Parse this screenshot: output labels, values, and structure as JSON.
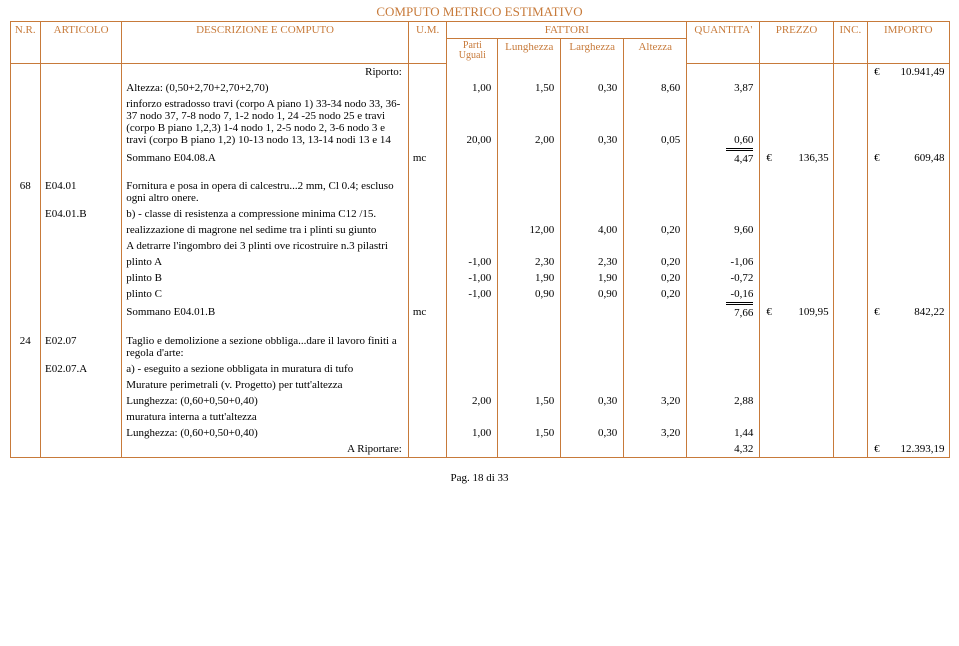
{
  "title": "COMPUTO METRICO ESTIMATIVO",
  "header": {
    "nr": "N.R.",
    "articolo": "ARTICOLO",
    "descrizione": "DESCRIZIONE E COMPUTO",
    "um": "U.M.",
    "fattori": "FATTORI",
    "parti_uguali": "Parti Uguali",
    "lunghezza": "Lunghezza",
    "larghezza": "Larghezza",
    "altezza": "Altezza",
    "quantita": "QUANTITA'",
    "prezzo": "PREZZO",
    "inc": "INC.",
    "importo": "IMPORTO"
  },
  "riporto_label": "Riporto:",
  "riporto_value": "10.941,49",
  "rows": [
    {
      "nr": "",
      "art": "",
      "desc": "Altezza: (0,50+2,70+2,70+2,70)",
      "um": "",
      "pu": "1,00",
      "lun": "1,50",
      "lar": "0,30",
      "alt": "8,60",
      "q": "3,87",
      "p": "",
      "inc": "",
      "imp": ""
    },
    {
      "nr": "",
      "art": "",
      "desc": "rinforzo estradosso travi (corpo A piano 1) 33-34 nodo 33, 36-37 nodo 37, 7-8 nodo 7, 1-2 nodo 1, 24 -25 nodo 25 e travi (corpo B piano 1,2,3) 1-4 nodo 1, 2-5 nodo 2, 3-6 nodo 3 e travi (corpo B piano 1,2) 10-13 nodo 13, 13-14 nodi 13 e 14",
      "um": "",
      "pu": "20,00",
      "lun": "2,00",
      "lar": "0,30",
      "alt": "0,05",
      "q": "0,60",
      "p": "",
      "inc": "",
      "imp": ""
    },
    {
      "type": "sommano",
      "desc": "Sommano E04.08.A",
      "um": "mc",
      "q": "4,47",
      "p": "136,35",
      "imp": "609,48"
    },
    {
      "nr": "68",
      "art": "E04.01",
      "desc": "Fornitura e posa in opera di calcestru...2 mm, Cl 0.4; escluso ogni altro onere."
    },
    {
      "nr": "",
      "art": "E04.01.B",
      "desc": "b) - classe di resistenza a compressione minima C12 /15."
    },
    {
      "nr": "",
      "art": "",
      "desc": "realizzazione di magrone nel sedime tra i plinti su giunto",
      "pu": "",
      "lun": "12,00",
      "lar": "4,00",
      "alt": "0,20",
      "q": "9,60"
    },
    {
      "nr": "",
      "art": "",
      "desc": "A detrarre l'ingombro dei 3 plinti ove ricostruire n.3 pilastri"
    },
    {
      "nr": "",
      "art": "",
      "desc": "plinto A",
      "pu": "-1,00",
      "lun": "2,30",
      "lar": "2,30",
      "alt": "0,20",
      "q": "-1,06"
    },
    {
      "nr": "",
      "art": "",
      "desc": "plinto B",
      "pu": "-1,00",
      "lun": "1,90",
      "lar": "1,90",
      "alt": "0,20",
      "q": "-0,72"
    },
    {
      "nr": "",
      "art": "",
      "desc": "plinto C",
      "pu": "-1,00",
      "lun": "0,90",
      "lar": "0,90",
      "alt": "0,20",
      "q": "-0,16"
    },
    {
      "type": "sommano",
      "desc": "Sommano E04.01.B",
      "um": "mc",
      "q": "7,66",
      "p": "109,95",
      "imp": "842,22"
    },
    {
      "nr": "24",
      "art": "E02.07",
      "desc": "Taglio e demolizione a sezione obbliga...dare il lavoro finiti a regola  d'arte:"
    },
    {
      "nr": "",
      "art": "E02.07.A",
      "desc": "a) - eseguito a sezione obbligata in muratura di tufo"
    },
    {
      "nr": "",
      "art": "",
      "desc": "Murature perimetrali (v. Progetto) per tutt'altezza"
    },
    {
      "nr": "",
      "art": "",
      "desc": "Lunghezza: (0,60+0,50+0,40)",
      "pu": "2,00",
      "lun": "1,50",
      "lar": "0,30",
      "alt": "3,20",
      "q": "2,88"
    },
    {
      "nr": "",
      "art": "",
      "desc": "muratura interna a tutt'altezza"
    },
    {
      "nr": "",
      "art": "",
      "desc": "Lunghezza: (0,60+0,50+0,40)",
      "pu": "1,00",
      "lun": "1,50",
      "lar": "0,30",
      "alt": "3,20",
      "q": "1,44"
    }
  ],
  "a_riportare_label": "A Riportare:",
  "a_riportare_q": "4,32",
  "a_riportare_imp": "12.393,19",
  "footer": "Pag. 18 di 33",
  "currency": "€"
}
